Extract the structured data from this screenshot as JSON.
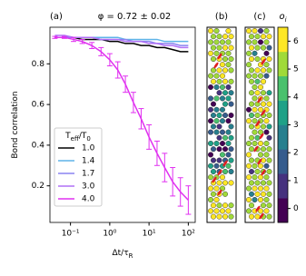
{
  "chart_data": [
    {
      "type": "line",
      "panel": "(a)",
      "title": "φ = 0.72 ± 0.02",
      "x_label": "Δt/τ_R",
      "y_label": "Bond correlation",
      "legend_title": "T_eff/T_0",
      "legend": "lower left",
      "xscale": "log",
      "xlim": [
        0.03,
        150
      ],
      "ylim": [
        0.02,
        0.98
      ],
      "xticks": [
        {
          "value": 0.1,
          "label": "10⁻¹"
        },
        {
          "value": 1,
          "label": "10⁰"
        },
        {
          "value": 10,
          "label": "10¹"
        },
        {
          "value": 100,
          "label": "10²"
        }
      ],
      "yticks": [
        0.2,
        0.4,
        0.6,
        0.8
      ],
      "x": [
        0.04,
        0.07,
        0.12,
        0.2,
        0.35,
        0.6,
        1,
        1.6,
        2.5,
        4,
        6.3,
        10,
        16,
        25,
        40,
        63,
        100
      ],
      "series": [
        {
          "name": "1.0",
          "color": "#000000",
          "values": [
            0.93,
            0.93,
            0.93,
            0.92,
            0.92,
            0.92,
            0.91,
            0.91,
            0.9,
            0.9,
            0.89,
            0.89,
            0.88,
            0.88,
            0.87,
            0.86,
            0.86
          ]
        },
        {
          "name": "1.4",
          "color": "#5fb4e8",
          "values": [
            0.93,
            0.93,
            0.93,
            0.93,
            0.93,
            0.93,
            0.93,
            0.93,
            0.92,
            0.92,
            0.92,
            0.92,
            0.92,
            0.91,
            0.91,
            0.91,
            0.91
          ]
        },
        {
          "name": "1.7",
          "color": "#8a84f0",
          "values": [
            0.93,
            0.93,
            0.93,
            0.93,
            0.93,
            0.92,
            0.92,
            0.92,
            0.92,
            0.91,
            0.91,
            0.91,
            0.9,
            0.9,
            0.9,
            0.89,
            0.89
          ]
        },
        {
          "name": "3.0",
          "color": "#b070f5",
          "values": [
            0.94,
            0.94,
            0.93,
            0.93,
            0.93,
            0.92,
            0.92,
            0.92,
            0.91,
            0.91,
            0.91,
            0.9,
            0.9,
            0.89,
            0.89,
            0.88,
            0.88
          ]
        },
        {
          "name": "4.0",
          "color": "#e030f0",
          "values": [
            0.93,
            0.93,
            0.92,
            0.91,
            0.89,
            0.86,
            0.82,
            0.77,
            0.7,
            0.61,
            0.53,
            0.44,
            0.36,
            0.29,
            0.22,
            0.17,
            0.13
          ],
          "errors": [
            0.005,
            0.005,
            0.01,
            0.01,
            0.015,
            0.02,
            0.03,
            0.04,
            0.04,
            0.05,
            0.05,
            0.06,
            0.06,
            0.07,
            0.07,
            0.07,
            0.07
          ]
        }
      ]
    },
    {
      "type": "image",
      "panel": "(b)"
    },
    {
      "type": "image",
      "panel": "(c)"
    },
    {
      "type": "colorbar",
      "label": "o_i",
      "ylim": [
        -0.5,
        6.5
      ],
      "yticks": [
        0,
        1,
        2,
        3,
        4,
        5,
        6
      ],
      "colors": [
        "#440154",
        "#46327e",
        "#365c8d",
        "#277f8e",
        "#1fa187",
        "#4ac16d",
        "#a0da39",
        "#fde725"
      ]
    }
  ]
}
